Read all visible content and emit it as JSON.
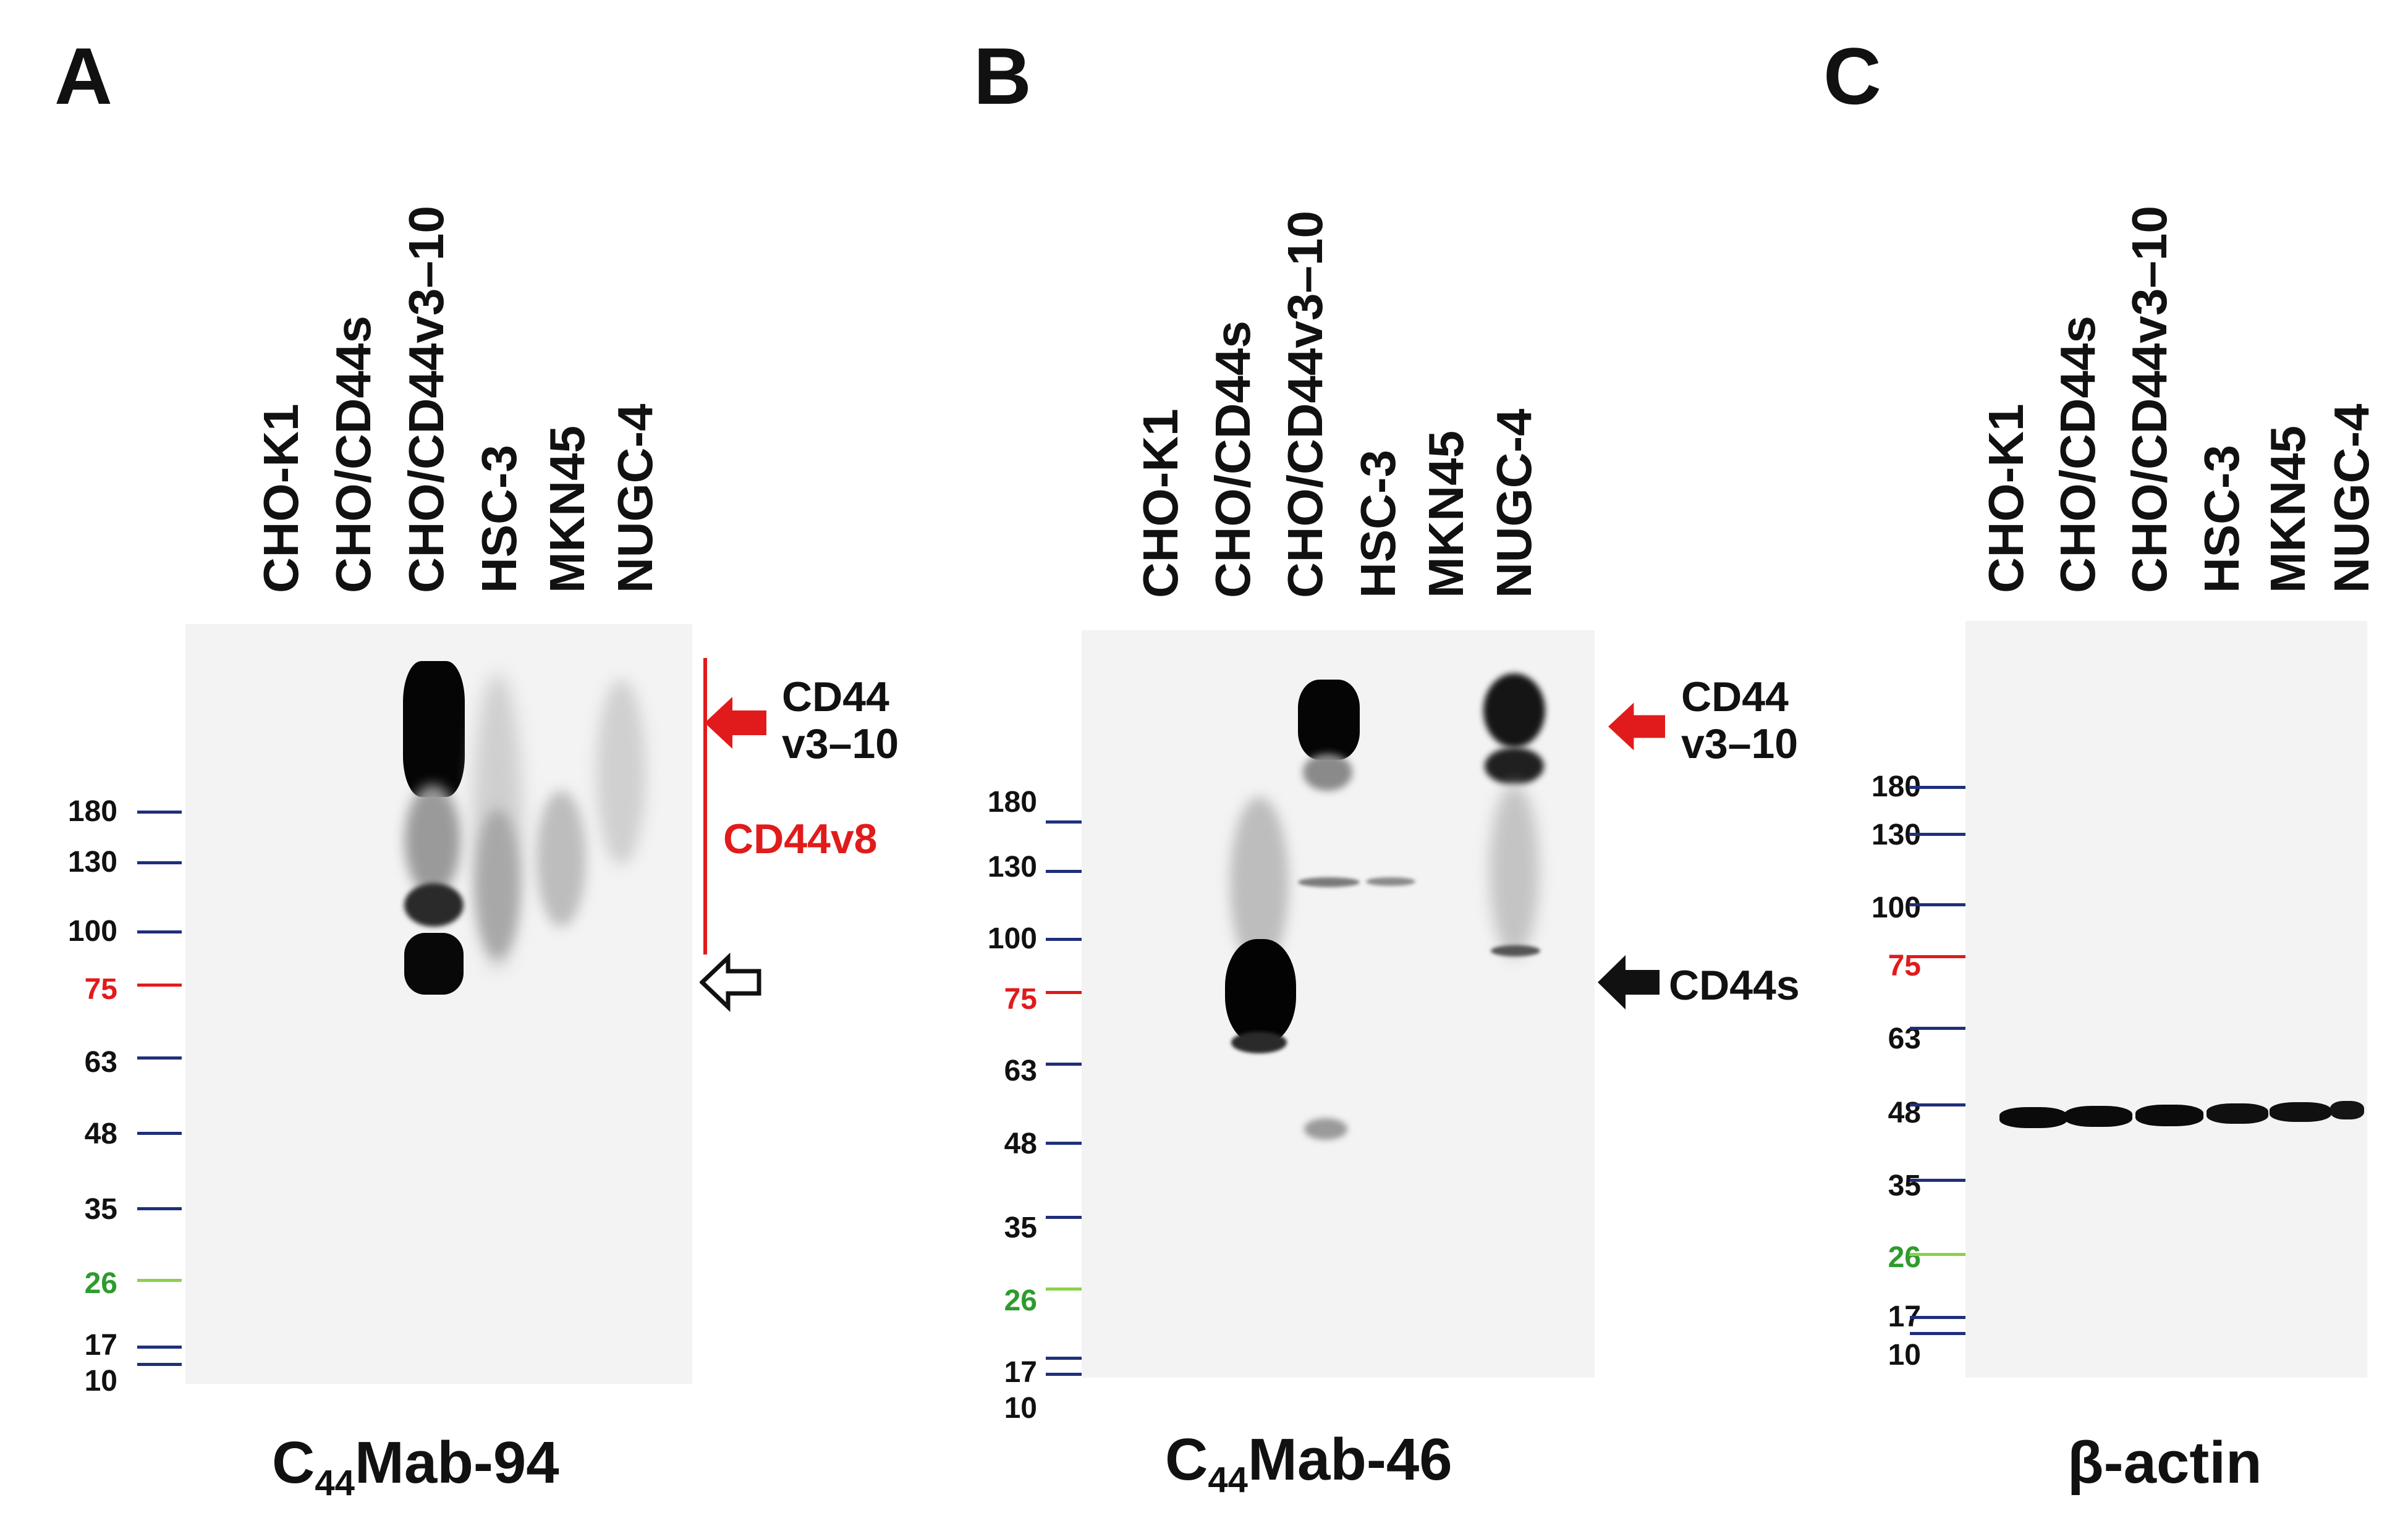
{
  "lanes": [
    "CHO-K1",
    "CHO/CD44s",
    "CHO/CD44v3–10",
    "HSC-3",
    "MKN45",
    "NUGC-4"
  ],
  "markers": {
    "m180": "180",
    "m130": "130",
    "m100": "100",
    "m75": "75",
    "m63": "63",
    "m48": "48",
    "m35": "35",
    "m26": "26",
    "m17": "17",
    "m10": "10"
  },
  "colors": {
    "marker_blue": "#1f2f7a",
    "marker_red": "#e11b1b",
    "marker_green": "#2e9b2e",
    "annot_red": "#e11b1b"
  },
  "panels": {
    "A": {
      "letter": "A",
      "caption_pre": "C",
      "caption_sub": "44",
      "caption_post": "Mab-94",
      "annot_v3_10_l1": "CD44",
      "annot_v3_10_l2": "v3–10",
      "annot_v8": "CD44v8"
    },
    "B": {
      "letter": "B",
      "caption_pre": "C",
      "caption_sub": "44",
      "caption_post": "Mab-46",
      "annot_v3_10_l1": "CD44",
      "annot_v3_10_l2": "v3–10",
      "annot_s": "CD44s"
    },
    "C": {
      "letter": "C",
      "caption": "β-actin"
    }
  }
}
